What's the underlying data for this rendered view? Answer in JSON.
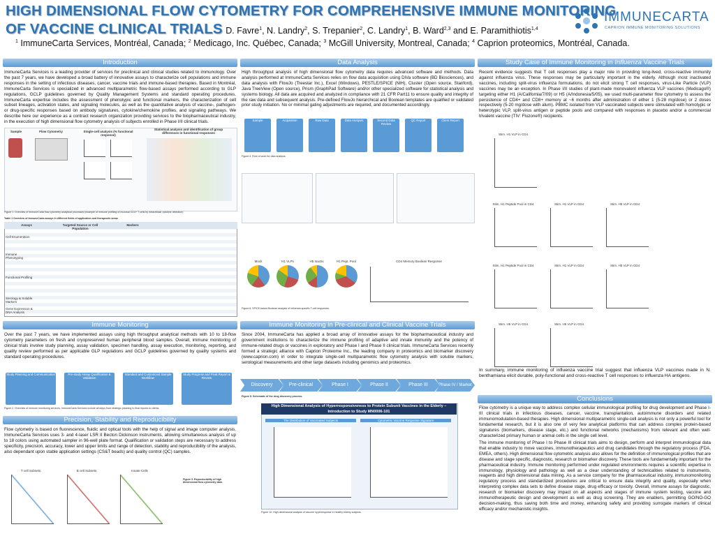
{
  "header": {
    "title_line1": "HIGH DIMENSIONAL FLOW CYTOMETRY FOR COMPREHENSIVE IMMUNE MONITORING",
    "title_line2": "OF VACCINE CLINICAL TRIALS",
    "authors": [
      {
        "text": " D. Favre",
        "sup": "1"
      },
      {
        "text": ", N. Landry",
        "sup": "2"
      },
      {
        "text": ", S. Trepanier",
        "sup": "2"
      },
      {
        "text": ", C. Landry",
        "sup": "1"
      },
      {
        "text": ", B. Ward",
        "sup": "2,3"
      },
      {
        "text": " and E. Paramithiotis",
        "sup": "1,4"
      }
    ],
    "affiliations": [
      {
        "sup": "1",
        "text": " ImmuneCarta Services, Montréal, Canada; "
      },
      {
        "sup": "2",
        "text": " Medicago, Inc. Québec, Canada; "
      },
      {
        "sup": "3",
        "text": " McGill University, Montreal, Canada; "
      },
      {
        "sup": "4",
        "text": " Caprion proteomics, Montréal, Canada."
      }
    ],
    "logo_name": "IMMUNECARTA",
    "logo_tagline": "CAPRION IMMUNE MONITORING SOLUTIONS"
  },
  "introduction": {
    "heading": "Introduction",
    "text": "ImmuneCarta Services is a leading provider of services for preclinical and clinical studies related to immunology. Over the past 7 years, we have developed a broad battery of innovative assays to characterize cell populations and immune responses in the setting of infectious diseases, cancer, vaccine trials and immune-based therapies. Based in Montréal, ImmuneCarta Services is specialized in advanced multiparametric flow-based assays performed according to GLP regulations, GCLP guidelines governed by Quality Management Systems and standard operating procedures. ImmuneCarta expertise includes the assessment of phenotypic and functional markers, the characterization of cell subset lineages, activation states, and signaling molecules, as well as the quantitative analysis of vaccine-, pathogen- or drug-specific responses based on antibody signatures, cytokine/chemokine profiles, and signaling pathways. We describe here our experience as a contract research organization providing services to the biopharmaceutical industry, in the execution of high dimensional flow cytometry analysis of subjects enrolled in Phase I/II clinical trials.",
    "figure_labels": [
      "Sample",
      "Flow Cytometry",
      "Single-cell analysis (% functional response)",
      "Statistical analysis and identification of group differences in functional responses"
    ],
    "figure_caption": "Figure 1. Overview of ImmuneCarta flow cytometry analytical processes (example of immune profiling of mucosal CD4+ T cells by intracellular cytokine detection)",
    "table_title": "Table 1 Overview of ImmuneCarta assays in different fields of application and therapeutic areas",
    "table_headers": [
      "Assays",
      "Targeted Source or Cell Population",
      "Markers"
    ],
    "table_groups": [
      "Cell Enumeration",
      "Immune Phenotyping",
      "Functional Profiling",
      "Serology & Soluble Markers",
      "Gene Expression & DNA Analysis"
    ]
  },
  "immune_monitoring": {
    "heading": "Immune Monitoring",
    "text": "Over the past 7 years, we have implemented assays using high throughput analytical methods with 10 to 18-flow cytometry parameters on fresh and cryopreserved human peripheral blood samples. Overall, immune monitoring of clinical trials involve study planning, assay validation, specimen handling, assay execution, monitoring, reporting, and quality review performed as per applicable GLP regulations and GCLP guidelines governed by quality systems and standard operating procedures.",
    "steps": [
      "Study Planning and Communication",
      "Pre-study Assay Qualification & Validation",
      "Standard and Customized Sample Workflow",
      "Study Progress and Final Report & Review"
    ],
    "figure_caption": "Figure 2. Overview of immune monitoring services. ImmuneCarta Services include all steps from strategic planning to final reports to clients."
  },
  "precision": {
    "heading": "Precision, Stability and Reproducibility",
    "text": "Flow cytometry is based on fluorescence, fluidic and optical tools with the help of signal and image computer analysis. ImmuneCarta Services uses 3- and 4-laser LSR II Becton Dickinson instruments, allowing simultaneous analysis of up to 18 colors using automated sampler in 96-well plate format. Qualification or validation steps are necessary to address specificity, precision, accuracy, lower and upper limits and range of detection, stability and reproducibility of the analysis, also dependant upon stable application settings (CS&T beads) and quality control (QC) samples.",
    "panels": [
      "T cell Subsets",
      "B cell Subsets",
      "Innate Cells"
    ],
    "figure_caption": "Figure 3. Reproducibility of high dimensional flow cytometry data."
  },
  "data_analysis": {
    "heading": "Data Analysis",
    "text": "High throughput analysis of high dimensional flow cytometry data requires advanced software and methods. Data analysis performed at ImmuneCarta Services relies on flow data acquisition using DiVa software (BD Biosciences), and data analysis with FlowJo (Treestar Inc.), Excel (Windows), PESTLE/SPICE (NIH), Cluster (Open source, Stanford), Java TreeView (Open source), Prism (GraphPad Software) and/or other specialized software for statistical analysis and systems biology. All data are acquired and analyzed in compliance with 21 CFR Part11 to ensure quality and integrity of the raw data and subsequent analysis. Pre-defined FlowJo hierarchical and Boolean templates are qualified or validated prior study initiation. No or minimal gating adjustments are required, and documented accordingly.",
    "flow_steps": [
      "Sample",
      "Acquisition",
      "Raw Data",
      "Data Analysis",
      "Second Data Review",
      "QC Report",
      "Client Report"
    ],
    "figure4_caption": "Figure 4. Flow of work for data analysis.",
    "figure8_caption": "Figure 8. SPICE-based Boolean analysis of influenza-specific T-cell responses.",
    "panels": [
      "Mock",
      "H1 VLPs",
      "H5 Inactiv.",
      "H1 Pept. Pool",
      "CD4 Memory Boolean Response"
    ]
  },
  "preclinical": {
    "heading": "Immune Monitoring in Pre-clinical and Clinical Vaccine Trials",
    "text": "Since 2004, ImmuneCarta has applied a broad array of innovative assays for the biopharmaceutical industry and government institutions to characterize the immune profiling of adaptive and innate immunity and the potency of immune-related drugs or vaccines in exploratory and Phase I and Phase II clinical trials. ImmuneCarta Services recently formed a strategic alliance with Caprion Proteome Inc., the leading company in proteomics and biomarker discovery (www.caprion.com) in order to integrate single-cell multiparametric flow cytometry analysis with soluble markers, serological measurements and other large datasets including genomics and proteomics.",
    "pipeline": [
      "Discovery",
      "Pre-clinical",
      "Phase I",
      "Phase II",
      "Phase III",
      "Phase IV / Market"
    ],
    "figure9_caption": "Figure 9. Schematic of the drug discovery process.",
    "banner": "High Dimensional Analysis of Hyperresponsiveness to Protein Subunit Vaccines in the Elderly – Introduction to Study MN0006-101",
    "panel_titles": [
      "The Distribution of Vaccinated Subjects",
      "Cytometric Vaccine Response Signature"
    ],
    "figure10_caption": "Figure 10. High dimensional analysis of vaccine hyperresponse in healthy elderly subjects."
  },
  "study_case": {
    "heading_prefix": "Study Case of Immune Monitoring in ",
    "heading_em": "Influenza",
    "heading_suffix": " Vaccine Trials",
    "text": "Recent evidence suggests that T cell responses play a major role in providing long-lived, cross-reactive immunity against influenza virus. These responses may be particularly important in the elderly. Although most inactivated vaccines, including split-virus influenza formulations, do not elicit strong T cell responses, virus-Like Particle (VLP) vaccines may be an exception. In Phase I/II studies of plant-made monovalent influenza VLP vaccines (Medicago®) targeting either H1 (A/California/7/09) or H5 (A/Indonesia/5/05), we used multi-parameter flow cytometry to assess the persistence of CD4+ and CD8+ memory at ~6 months after administration of either 1 (5-28 mg/dose) or 2 doses respectively (5-20 mg/dose with alum). PBMC isolated from VLP vaccinated subjects were stimulated with homotypic or heterotypic VLP, split-virus antigen or peptide pools and compared with responses in placebo and/or a commercial trivalent vaccine (TIV: Fluzone®) recipients.",
    "plot_titles": [
      "Stim. H1 VLP in CD4",
      "Stim. H1 Peptide Pool in CD4",
      "Stim. H1 VLP in CD4",
      "Stim. H5 VLP in CD4",
      "Stim. H1 Peptide Pool in CD4",
      "Stim. H1 VLP in CD4",
      "Stim. H5 VLP in CD4",
      "Stim. H5 VLP in CD4",
      "Stim. H5 VLP in CD4"
    ],
    "summary": "In summary, immune monitoring of influenza vaccine trial suggest that influenza VLP vaccines made in N. benthamiana elicit durable, poly-functional and cross-reactive T cell responses to influenza HA antigens."
  },
  "conclusions": {
    "heading": "Conclusions",
    "paragraphs": [
      "Flow cytometry is a unique way to address complex cellular immunological profiling for drug development and Phase I-III clinical trials in infectious diseases, cancer, vaccine, transplantation, autoimmune disorders and related immunomodulation-based therapies. High dimensional multiparametric single-cell analysis is not only a powerful tool for fundamental research, but it is also one of very few analytical platforms that can address complex protein-based signatures (biomarkers, disease stage, etc.) and functional networks (mechanisms) from relevant and often well-characterized primary human or animal cells in the single cell level.",
      "The immune monitoring of Phase I to Phase III clinical trials aims to design, perform and interpret immunological data that enable industry to move vaccines, immunotherapeutics and drug candidates through the regulatory process (FDA, EMEA, others). High dimensional flow cytometric analysis also allows for the definition of immunological profiles that are disease and stage specific, diagnostic, research or biomarker discovery. These tools are fundamentally important for the pharmaceutical industry. Immune monitoring performed under regulated environments requires a scientific expertise in immunology, physiology and pathology as well as a clear understanding of technicalities related to instruments, reagents and high dimensional data mining. As a service company for the pharmaceutical industry, immunomonitoring regulatory process and standardized procedures are critical to ensure data integrity and quality, especially when interpreting complex data sets to define disease stage, drug efficacy or toxicity. Overall, immune assays for diagnostic, research or biomarker discovery may impact on all aspects and stages of immune system testing, vaccine and immunotherapeutic design and development as well as drug screening. They are enablers, permitting GO/NO-GO decision-making, thus saving both time and money, enhancing safety and providing surrogate markers of clinical efficacy and/or mechanistic insights."
    ]
  }
}
